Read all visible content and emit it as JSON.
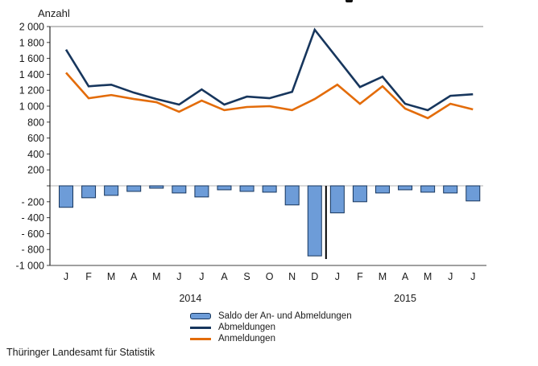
{
  "axis_title": "Anzahl",
  "footer": "Thüringer Landesamt für Statistik",
  "chart_data": {
    "type": "bar+line combo",
    "categories": [
      "J",
      "F",
      "M",
      "A",
      "M",
      "J",
      "J",
      "A",
      "S",
      "O",
      "N",
      "D",
      "J",
      "F",
      "M",
      "A",
      "M",
      "J",
      "J"
    ],
    "year_groups": [
      {
        "label": "2014",
        "start": 0,
        "end": 11
      },
      {
        "label": "2015",
        "start": 12,
        "end": 18
      }
    ],
    "ylabel": "Anzahl",
    "ylim": [
      -1000,
      2000
    ],
    "ytick_step": 200,
    "y_tick_labels": [
      "2 000",
      "1 800",
      "1 600",
      "1 400",
      "1 200",
      "1 000",
      "800",
      "600",
      "400",
      "200",
      "",
      "- 200",
      "- 400",
      "- 600",
      "- 800",
      "-1 000"
    ],
    "grid": false,
    "legend_position": "bottom",
    "year_separator_after_index": 11,
    "series": [
      {
        "name": "Saldo der An- und Abmeldungen",
        "type": "bar",
        "color": "#6d9cd8",
        "border_color": "#17365d",
        "values": [
          -270,
          -150,
          -120,
          -70,
          -30,
          -90,
          -140,
          -50,
          -70,
          -80,
          -240,
          -880,
          -340,
          -200,
          -90,
          -50,
          -80,
          -90,
          -190
        ]
      },
      {
        "name": "Abmeldungen",
        "type": "line",
        "color": "#17365d",
        "values": [
          1710,
          1250,
          1270,
          1170,
          1090,
          1020,
          1210,
          1020,
          1120,
          1100,
          1180,
          1960,
          1600,
          1240,
          1370,
          1030,
          950,
          1130,
          1150
        ]
      },
      {
        "name": "Anmeldungen",
        "type": "line",
        "color": "#e36c0a",
        "values": [
          1420,
          1100,
          1140,
          1090,
          1050,
          930,
          1070,
          950,
          990,
          1000,
          950,
          1090,
          1270,
          1030,
          1250,
          970,
          850,
          1030,
          960
        ]
      }
    ]
  }
}
